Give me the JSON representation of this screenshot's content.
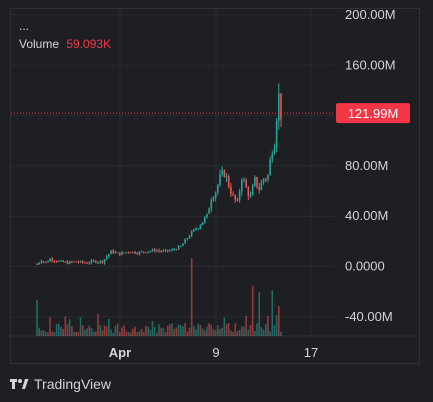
{
  "legend": {
    "title": "...",
    "volume_label": "Volume",
    "volume_value": "59.093K"
  },
  "price_tag": {
    "label": "121.99M",
    "color": "#f23645"
  },
  "brand": {
    "name": "TradingView",
    "icon": "tradingview-logo-icon"
  },
  "colors": {
    "up": "#26a69a",
    "down": "#ef5350",
    "grid": "#2a2b30",
    "text": "#d1d4dc"
  },
  "chart_data": {
    "type": "candlestick",
    "x_ticks": [
      "Apr",
      "9",
      "17"
    ],
    "y_ticks": [
      "200.00M",
      "160.00M",
      "120.00M",
      "80.00M",
      "40.00M",
      "0.0000",
      "-40.00M"
    ],
    "ylim": [
      -60000000,
      200000000
    ],
    "last_price": 121990000,
    "grid": true,
    "price_series": [
      {
        "i": 0,
        "v": 2
      },
      {
        "i": 2,
        "v": 5
      },
      {
        "i": 4,
        "v": 3
      },
      {
        "i": 6,
        "v": 6
      },
      {
        "i": 10,
        "v": 4
      },
      {
        "i": 14,
        "v": 3
      },
      {
        "i": 18,
        "v": 4
      },
      {
        "i": 22,
        "v": 3
      },
      {
        "i": 26,
        "v": 4
      },
      {
        "i": 30,
        "v": 4
      },
      {
        "i": 34,
        "v": 12
      },
      {
        "i": 38,
        "v": 10
      },
      {
        "i": 42,
        "v": 12
      },
      {
        "i": 46,
        "v": 11
      },
      {
        "i": 50,
        "v": 12
      },
      {
        "i": 54,
        "v": 13
      },
      {
        "i": 58,
        "v": 12
      },
      {
        "i": 62,
        "v": 13
      },
      {
        "i": 66,
        "v": 16
      },
      {
        "i": 70,
        "v": 25
      },
      {
        "i": 74,
        "v": 32
      },
      {
        "i": 78,
        "v": 40
      },
      {
        "i": 80,
        "v": 55
      },
      {
        "i": 82,
        "v": 60
      },
      {
        "i": 84,
        "v": 70
      },
      {
        "i": 86,
        "v": 75
      },
      {
        "i": 88,
        "v": 65
      },
      {
        "i": 90,
        "v": 55
      },
      {
        "i": 92,
        "v": 50
      },
      {
        "i": 94,
        "v": 72
      },
      {
        "i": 96,
        "v": 62
      },
      {
        "i": 98,
        "v": 55
      },
      {
        "i": 100,
        "v": 68
      },
      {
        "i": 102,
        "v": 62
      },
      {
        "i": 104,
        "v": 70
      },
      {
        "i": 106,
        "v": 72
      },
      {
        "i": 108,
        "v": 95
      },
      {
        "i": 109,
        "v": 100
      },
      {
        "i": 110,
        "v": 122
      },
      {
        "i": 111,
        "v": 135
      },
      {
        "i": 112,
        "v": 122
      }
    ]
  }
}
